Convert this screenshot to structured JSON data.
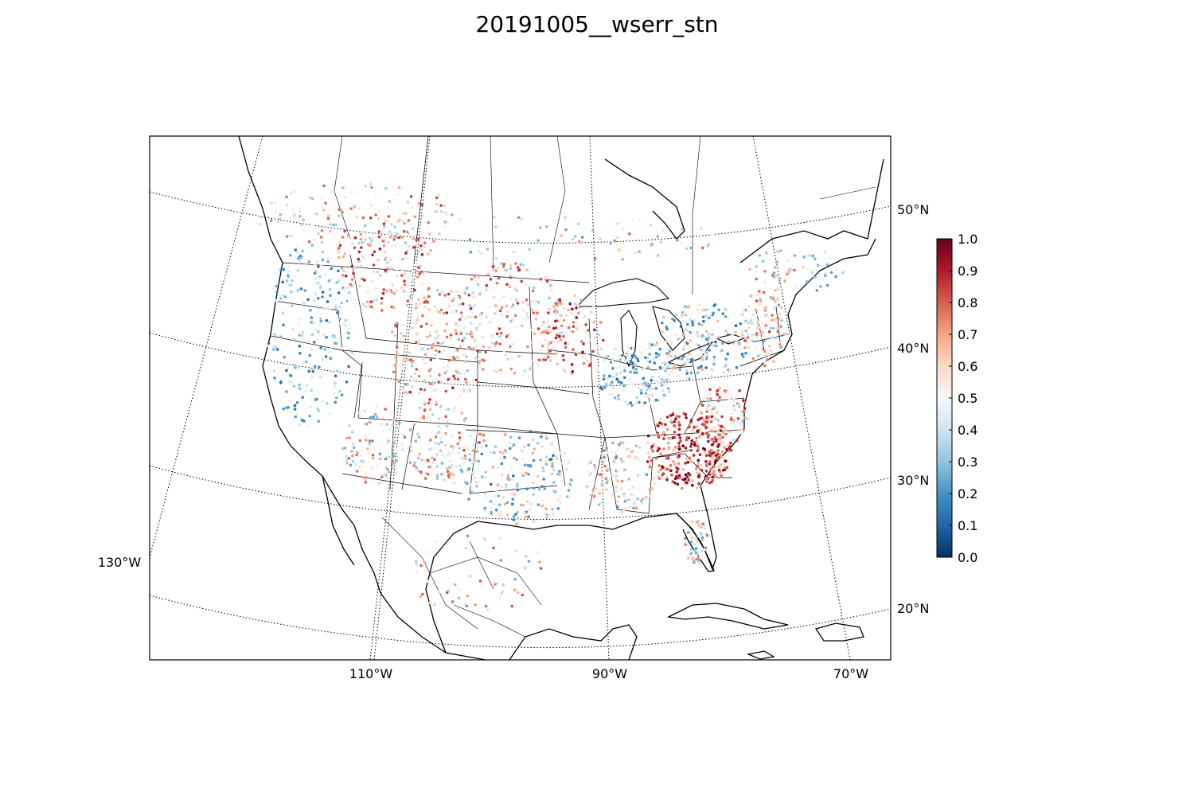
{
  "figure": {
    "title": "20191005__wserr_stn"
  },
  "chart_data": {
    "type": "scatter",
    "title": "20191005__wserr_stn",
    "map_projection": "Lambert conformal conic, North America",
    "lon_labels": [
      "130°W",
      "110°W",
      "90°W",
      "70°W"
    ],
    "lat_labels": [
      "20°N",
      "30°N",
      "40°N",
      "50°N"
    ],
    "colorbar": {
      "min": 0.0,
      "max": 1.0,
      "cmap": "RdBu_r",
      "ticks": [
        "0.0",
        "0.1",
        "0.2",
        "0.3",
        "0.4",
        "0.5",
        "0.6",
        "0.7",
        "0.8",
        "0.9",
        "1.0"
      ]
    },
    "colors": {
      "low": "#053061",
      "mid": "#f7f7f7",
      "high": "#67001f"
    },
    "regions_note": "High values clustered in the southeastern US (Carolinas, Georgia, Alabama) and the central Rockies/Plains; low values along the Pacific coast, Texas Gulf coast and the Great Lakes/Ohio Valley."
  }
}
